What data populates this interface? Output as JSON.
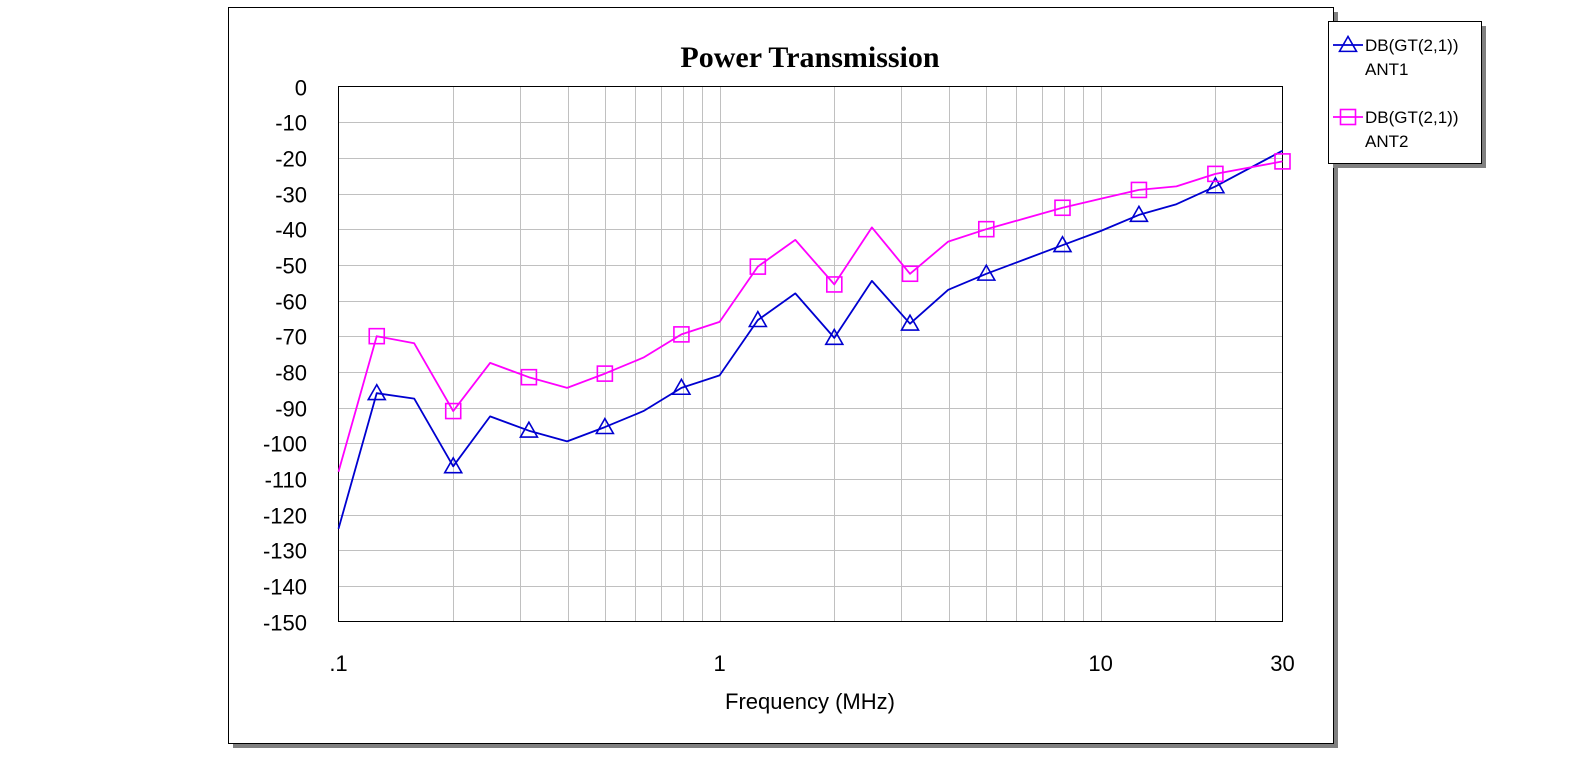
{
  "chart_data": {
    "type": "line",
    "title": "Power Transmission",
    "xlabel": "Frequency (MHz)",
    "ylabel": "",
    "x_scale": "log",
    "xlim": [
      0.1,
      30
    ],
    "ylim": [
      -150,
      0
    ],
    "x_tick_labels": [
      {
        "value": 0.1,
        "label": ".1"
      },
      {
        "value": 1,
        "label": "1"
      },
      {
        "value": 10,
        "label": "10"
      },
      {
        "value": 30,
        "label": "30"
      }
    ],
    "y_ticks": [
      0,
      -10,
      -20,
      -30,
      -40,
      -50,
      -60,
      -70,
      -80,
      -90,
      -100,
      -110,
      -120,
      -130,
      -140,
      -150
    ],
    "grid": true,
    "legend_position": "right",
    "x": [
      0.1,
      0.126,
      0.158,
      0.2,
      0.25,
      0.316,
      0.398,
      0.5,
      0.631,
      0.794,
      1.0,
      1.26,
      1.58,
      2.0,
      2.51,
      3.16,
      3.98,
      5.01,
      6.31,
      7.94,
      10.0,
      12.6,
      15.8,
      20.0,
      30.0
    ],
    "series": [
      {
        "name": "DB(GT(2,1))",
        "name_line2": "ANT1",
        "color": "#0000d0",
        "marker": "triangle",
        "marker_indices": [
          1,
          3,
          5,
          7,
          9,
          11,
          13,
          15,
          17,
          19,
          21,
          23
        ],
        "values": [
          -124,
          -86,
          -87.5,
          -106.5,
          -92.5,
          -96.5,
          -99.5,
          -95.5,
          -91,
          -84.5,
          -81,
          -65.5,
          -58,
          -70.5,
          -54.5,
          -66.5,
          -57,
          -52.5,
          -48.5,
          -44.5,
          -40.5,
          -36,
          -33,
          -28,
          -18
        ]
      },
      {
        "name": "DB(GT(2,1))",
        "name_line2": "ANT2",
        "color": "#ff00ff",
        "marker": "square",
        "marker_indices": [
          1,
          3,
          5,
          7,
          9,
          11,
          13,
          15,
          17,
          19,
          21,
          23,
          24
        ],
        "values": [
          -108,
          -70,
          -72,
          -91,
          -77.5,
          -81.5,
          -84.5,
          -80.5,
          -76,
          -69.5,
          -66,
          -50.5,
          -43,
          -55.5,
          -39.5,
          -52.5,
          -43.5,
          -40,
          -37,
          -34,
          -31.5,
          -29,
          -28,
          -24.5,
          -21
        ]
      }
    ]
  }
}
